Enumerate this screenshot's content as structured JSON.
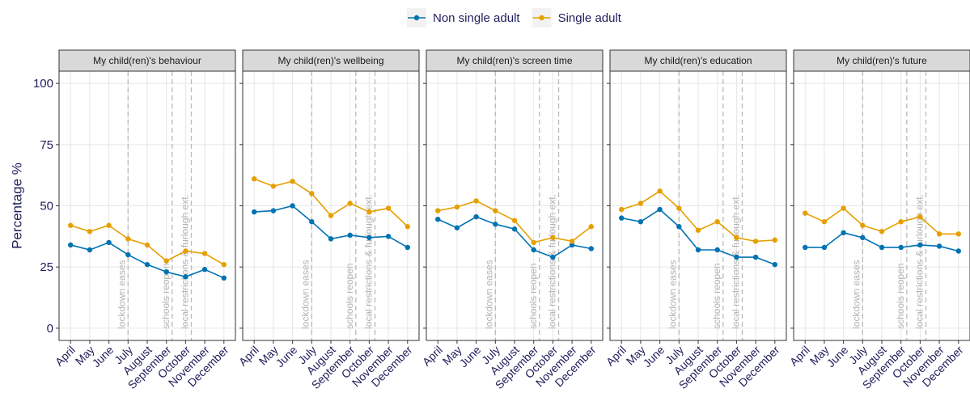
{
  "chart_data": [
    {
      "type": "line",
      "title": "My child(ren)'s behaviour",
      "ylabel": "Percentage %",
      "categories": [
        "April",
        "May",
        "June",
        "July",
        "August",
        "September",
        "October",
        "November",
        "December"
      ],
      "series": [
        {
          "name": "Non single adult",
          "color": "#0072B2",
          "values": [
            34,
            32,
            35,
            30,
            26,
            23,
            21,
            24,
            20.5
          ]
        },
        {
          "name": "Single adult",
          "color": "#E69F00",
          "values": [
            42,
            39.5,
            42,
            36.5,
            34,
            27.5,
            31.5,
            30.5,
            26
          ]
        }
      ],
      "annotations": [
        {
          "x": 3,
          "label": "lockdown eases"
        },
        {
          "x": 5.3,
          "label": "schools reopen"
        },
        {
          "x": 6.3,
          "label": "local restrictions & furlough ext."
        }
      ],
      "ylim": [
        -5,
        105
      ],
      "yticks": [
        0,
        25,
        50,
        75,
        100
      ],
      "grid": true
    },
    {
      "type": "line",
      "title": "My child(ren)'s wellbeing",
      "categories": [
        "April",
        "May",
        "June",
        "July",
        "August",
        "September",
        "October",
        "November",
        "December"
      ],
      "series": [
        {
          "name": "Non single adult",
          "color": "#0072B2",
          "values": [
            47.5,
            48,
            50,
            43.5,
            36.5,
            38,
            37,
            37.5,
            33
          ]
        },
        {
          "name": "Single adult",
          "color": "#E69F00",
          "values": [
            61,
            58,
            60,
            55,
            46,
            51,
            47.5,
            49,
            41.5
          ]
        }
      ],
      "annotations": [
        {
          "x": 3,
          "label": "lockdown eases"
        },
        {
          "x": 5.3,
          "label": "schools reopen"
        },
        {
          "x": 6.3,
          "label": "local restrictions & furlough ext."
        }
      ],
      "ylim": [
        -5,
        105
      ],
      "yticks": [
        0,
        25,
        50,
        75,
        100
      ],
      "grid": true
    },
    {
      "type": "line",
      "title": "My child(ren)'s screen time",
      "categories": [
        "April",
        "May",
        "June",
        "July",
        "August",
        "September",
        "October",
        "November",
        "December"
      ],
      "series": [
        {
          "name": "Non single adult",
          "color": "#0072B2",
          "values": [
            44.5,
            41,
            45.5,
            42.5,
            40.5,
            32,
            29,
            34,
            32.5
          ]
        },
        {
          "name": "Single adult",
          "color": "#E69F00",
          "values": [
            48,
            49.5,
            52,
            48,
            44,
            35,
            37,
            35.5,
            41.5
          ]
        }
      ],
      "annotations": [
        {
          "x": 3,
          "label": "lockdown eases"
        },
        {
          "x": 5.3,
          "label": "schools reopen"
        },
        {
          "x": 6.3,
          "label": "local restrictions & furlough ext."
        }
      ],
      "ylim": [
        -5,
        105
      ],
      "yticks": [
        0,
        25,
        50,
        75,
        100
      ],
      "grid": true
    },
    {
      "type": "line",
      "title": "My child(ren)'s education",
      "categories": [
        "April",
        "May",
        "June",
        "July",
        "August",
        "September",
        "October",
        "November",
        "December"
      ],
      "series": [
        {
          "name": "Non single adult",
          "color": "#0072B2",
          "values": [
            45,
            43.5,
            48.5,
            41.5,
            32,
            32,
            29,
            29,
            26
          ]
        },
        {
          "name": "Single adult",
          "color": "#E69F00",
          "values": [
            48.5,
            51,
            56,
            49,
            40,
            43.5,
            37,
            35.5,
            36
          ]
        }
      ],
      "annotations": [
        {
          "x": 3,
          "label": "lockdown eases"
        },
        {
          "x": 5.3,
          "label": "schools reopen"
        },
        {
          "x": 6.3,
          "label": "local restrictions & furlough ext."
        }
      ],
      "ylim": [
        -5,
        105
      ],
      "yticks": [
        0,
        25,
        50,
        75,
        100
      ],
      "grid": true
    },
    {
      "type": "line",
      "title": "My child(ren)'s future",
      "categories": [
        "April",
        "May",
        "June",
        "July",
        "August",
        "September",
        "October",
        "November",
        "December"
      ],
      "series": [
        {
          "name": "Non single adult",
          "color": "#0072B2",
          "values": [
            33,
            33,
            39,
            37,
            33,
            33,
            34,
            33.5,
            31.5
          ]
        },
        {
          "name": "Single adult",
          "color": "#E69F00",
          "values": [
            47,
            43.5,
            49,
            42,
            39.5,
            43.5,
            45.5,
            38.5,
            38.5
          ]
        }
      ],
      "annotations": [
        {
          "x": 3,
          "label": "lockdown eases"
        },
        {
          "x": 5.3,
          "label": "schools reopen"
        },
        {
          "x": 6.3,
          "label": "local restrictions & furlough ext."
        }
      ],
      "ylim": [
        -5,
        105
      ],
      "yticks": [
        0,
        25,
        50,
        75,
        100
      ],
      "grid": true
    }
  ]
}
